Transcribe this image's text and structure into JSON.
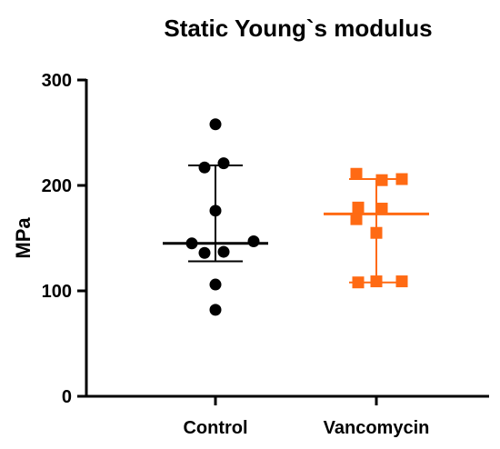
{
  "chart_data": {
    "type": "scatter",
    "title": "Static Young`s modulus",
    "xlabel": "",
    "ylabel": "MPa",
    "ylim": [
      0,
      300
    ],
    "yticks": [
      0,
      100,
      200,
      300
    ],
    "ytick_labels": [
      "0",
      "100",
      "200",
      "300"
    ],
    "categories": [
      "Control",
      "Vancomycin"
    ],
    "grid": false,
    "legend": "none",
    "series": [
      {
        "category": "Control",
        "color": "#000000",
        "marker": "circle",
        "values": [
          258,
          221,
          217,
          176,
          145,
          147,
          136,
          137,
          106,
          82
        ],
        "median": 145,
        "iqr": [
          128,
          219
        ]
      },
      {
        "category": "Vancomycin",
        "color": "#ff6a13",
        "marker": "square",
        "values": [
          211,
          205,
          206,
          179,
          178,
          168,
          155,
          108,
          109,
          109
        ],
        "median": 173,
        "iqr": [
          108,
          206
        ]
      }
    ]
  }
}
